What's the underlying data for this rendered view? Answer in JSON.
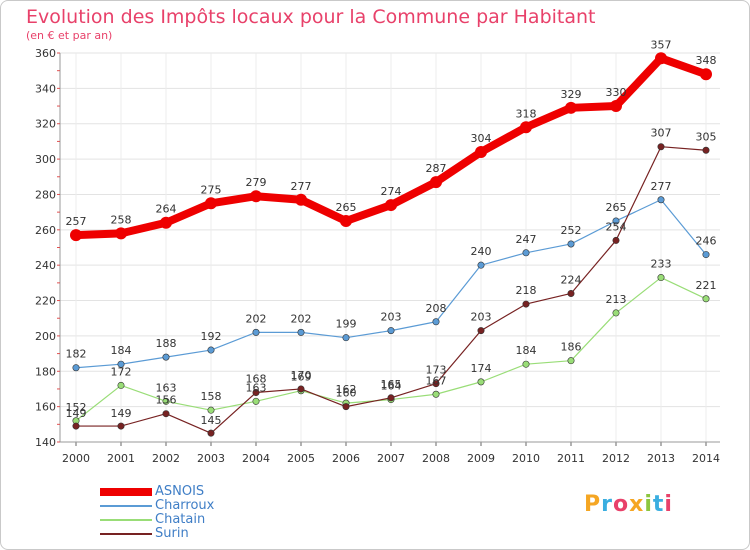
{
  "title": "Evolution des Impôts locaux pour la Commune par Habitant",
  "subtitle": "(en € et par an)",
  "logo": {
    "text": "Proxiti",
    "colors": [
      "#f5a623",
      "#3aaee0",
      "#e8416a",
      "#f5a623",
      "#8cc63f",
      "#3aaee0",
      "#e8416a"
    ]
  },
  "chart_data": {
    "type": "line",
    "x": [
      "2000",
      "2001",
      "2002",
      "2003",
      "2004",
      "2005",
      "2006",
      "2007",
      "2008",
      "2009",
      "2010",
      "2011",
      "2012",
      "2013",
      "2014"
    ],
    "ylim": [
      140,
      360
    ],
    "yticks": [
      140,
      160,
      180,
      200,
      220,
      240,
      260,
      280,
      300,
      320,
      340,
      360
    ],
    "grid": true,
    "legend_position": "bottom-left",
    "series": [
      {
        "name": "ASNOIS",
        "color": "#ee0000",
        "values": [
          257,
          258,
          264,
          275,
          279,
          277,
          265,
          274,
          287,
          304,
          318,
          329,
          330,
          357,
          348
        ]
      },
      {
        "name": "Charroux",
        "color": "#5b9bd5",
        "values": [
          182,
          184,
          188,
          192,
          202,
          202,
          199,
          203,
          208,
          240,
          247,
          252,
          265,
          277,
          246
        ]
      },
      {
        "name": "Chatain",
        "color": "#99dd77",
        "values": [
          152,
          172,
          163,
          158,
          163,
          169,
          162,
          164,
          167,
          174,
          184,
          186,
          213,
          233,
          221
        ]
      },
      {
        "name": "Surin",
        "color": "#772222",
        "values": [
          149,
          149,
          156,
          145,
          168,
          170,
          160,
          165,
          173,
          203,
          218,
          224,
          254,
          307,
          305
        ]
      }
    ]
  }
}
